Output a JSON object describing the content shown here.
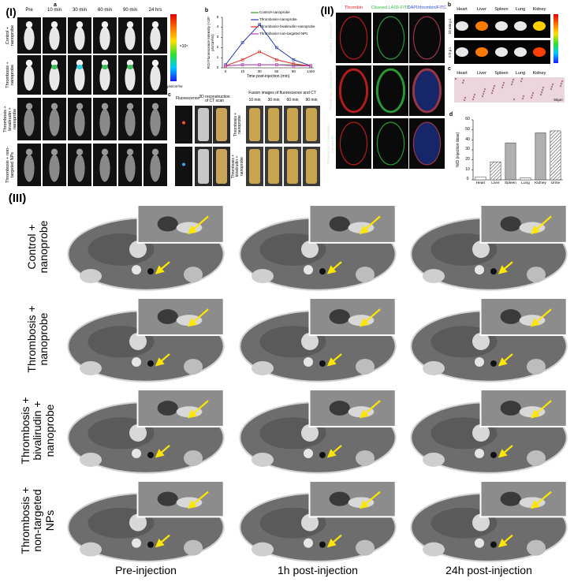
{
  "panel_I": {
    "label": "(I)",
    "a": {
      "letter": "a",
      "timepoints": [
        "Pre",
        "10 min",
        "30 min",
        "60 min",
        "90 min",
        "24 hrs"
      ],
      "groups": [
        "Control + nanoprobe",
        "Thrombosis + nanoprobe",
        "Thrombosis + bivalirudin + nanoprobe",
        "Thrombosis + non-targeted NPs"
      ],
      "colorbar_exponent": "×10⁵",
      "colorbar_unit": "p/s/cm²/sr"
    },
    "c": {
      "letter": "c",
      "headers": [
        "Fluorescence",
        "3D reconstruction of CT scan",
        "Fusion images of fluorescence and CT"
      ],
      "timepoints": [
        "10 min",
        "30 min",
        "60 min",
        "90 min"
      ],
      "groups": [
        "Thrombosis + nanoprobe",
        "Thrombosis + bivalirudin + nanoprobe"
      ]
    }
  },
  "panel_II": {
    "label": "(II)",
    "a": {
      "stains": [
        "Thrombin",
        "Cleaved LAS5-FITC",
        "DAPI/thrombin/FITC"
      ],
      "groups": [
        "Control + nanoprobe",
        "Thrombosis + nanoprobe",
        "Thrombosis + bivalirudin + nanoprobe"
      ]
    },
    "b": {
      "letter": "b",
      "organs": [
        "Heart",
        "Liver",
        "Spleen",
        "Lung",
        "Kidney"
      ],
      "timepoints": [
        "10 min p.i.",
        "6 h p.i."
      ]
    },
    "c": {
      "letter": "c",
      "organs": [
        "Heart",
        "Liver",
        "Spleen",
        "Lung",
        "Kidney"
      ],
      "scale_bar": "50μm"
    }
  },
  "panel_III": {
    "label": "(III)",
    "groups": [
      "Control + nanoprobe",
      "Thrombosis + nanoprobe",
      "Thrombosis + bivalirudin + nanoprobe",
      "Thrombosis + non-targeted NPs"
    ],
    "timepoints": [
      "Pre-injection",
      "1h post-injection",
      "24h post-injection"
    ]
  },
  "chart_data": [
    {
      "type": "line",
      "panel_label": "b",
      "x_label": "Time post-injection (min)",
      "y_label": "ROI Fluorescence Intensity (×10⁵ p/s/cm²/sr)",
      "categories": [
        "0",
        "10",
        "30",
        "60",
        "90",
        "1440"
      ],
      "ylim": [
        0,
        5
      ],
      "yticks": [
        0,
        1,
        2,
        3,
        4,
        5
      ],
      "series": [
        {
          "name": "Control+nanoprobe",
          "color": "#2ca02c",
          "values": [
            0.2,
            0.3,
            0.3,
            0.3,
            0.3,
            0.2
          ]
        },
        {
          "name": "Thrombosis+nanoprobe",
          "color": "#2a3ea8",
          "values": [
            0.3,
            2.5,
            4.3,
            2.0,
            0.8,
            0.2
          ]
        },
        {
          "name": "Thrombosis+bivalirudin+nanoprobe",
          "color": "#e0302a",
          "values": [
            0.2,
            0.8,
            1.6,
            0.8,
            0.4,
            0.2
          ]
        },
        {
          "name": "Thrombosis+non-targeted NPs",
          "color": "#c040c0",
          "values": [
            0.2,
            0.3,
            0.3,
            0.3,
            0.2,
            0.2
          ]
        }
      ]
    },
    {
      "type": "bar",
      "panel_label": "d",
      "y_label": "%ID (injection dose)",
      "categories": [
        "Heart",
        "Liver",
        "Spleen",
        "Lung",
        "Kidney",
        "Urine"
      ],
      "values": [
        3,
        18,
        37,
        2,
        47,
        49
      ],
      "colors": [
        "#ffffff",
        "#ffffff",
        "#b0b0b0",
        "#ffffff",
        "#b0b0b0",
        "#dcdcdc"
      ],
      "ylim": [
        0,
        60
      ],
      "yticks": [
        0,
        10,
        20,
        30,
        40,
        50,
        60
      ]
    }
  ]
}
